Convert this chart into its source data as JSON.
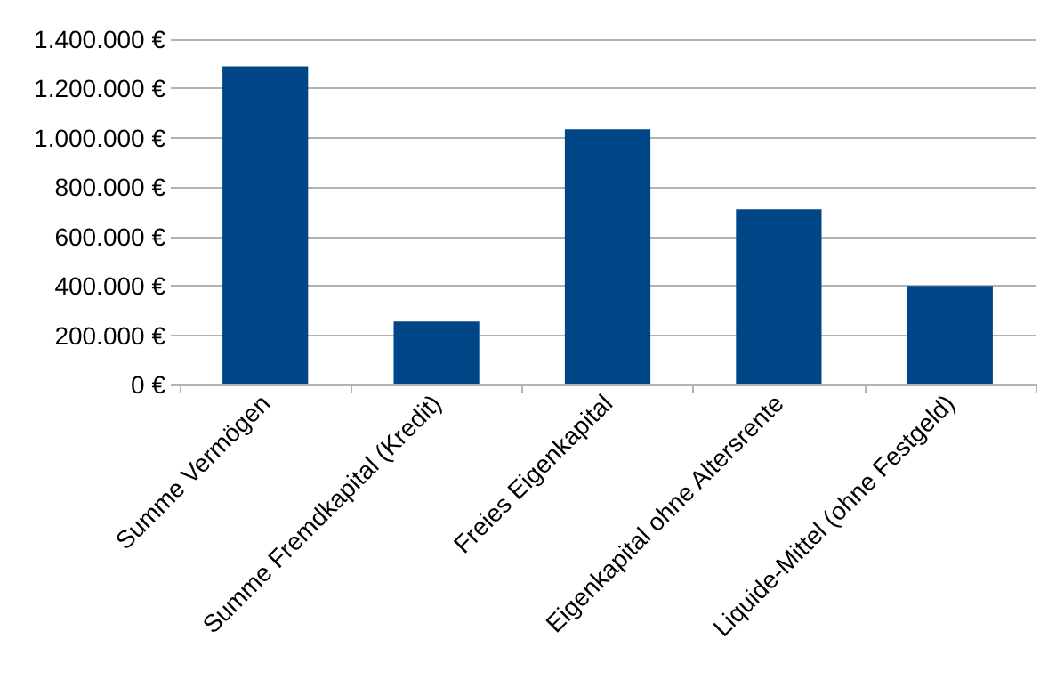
{
  "chart_data": {
    "type": "bar",
    "categories": [
      "Summe Vermögen",
      "Summe Fremdkapital (Kredit)",
      "Freies Eigenkapital",
      "Eigenkapital ohne Altersrente",
      "Liquide-Mittel (ohne Festgeld)"
    ],
    "values": [
      1290000,
      255000,
      1035000,
      710000,
      400000
    ],
    "color": "#004586",
    "ylim": [
      0,
      1400000
    ],
    "yticks": [
      {
        "value": 0,
        "label": "0 €"
      },
      {
        "value": 200000,
        "label": "200.000 €"
      },
      {
        "value": 400000,
        "label": "400.000 €"
      },
      {
        "value": 600000,
        "label": "600.000 €"
      },
      {
        "value": 800000,
        "label": "800.000 €"
      },
      {
        "value": 1000000,
        "label": "1.000.000 €"
      },
      {
        "value": 1200000,
        "label": "1.200.000 €"
      },
      {
        "value": 1400000,
        "label": "1.400.000 €"
      }
    ],
    "grid": "y"
  }
}
